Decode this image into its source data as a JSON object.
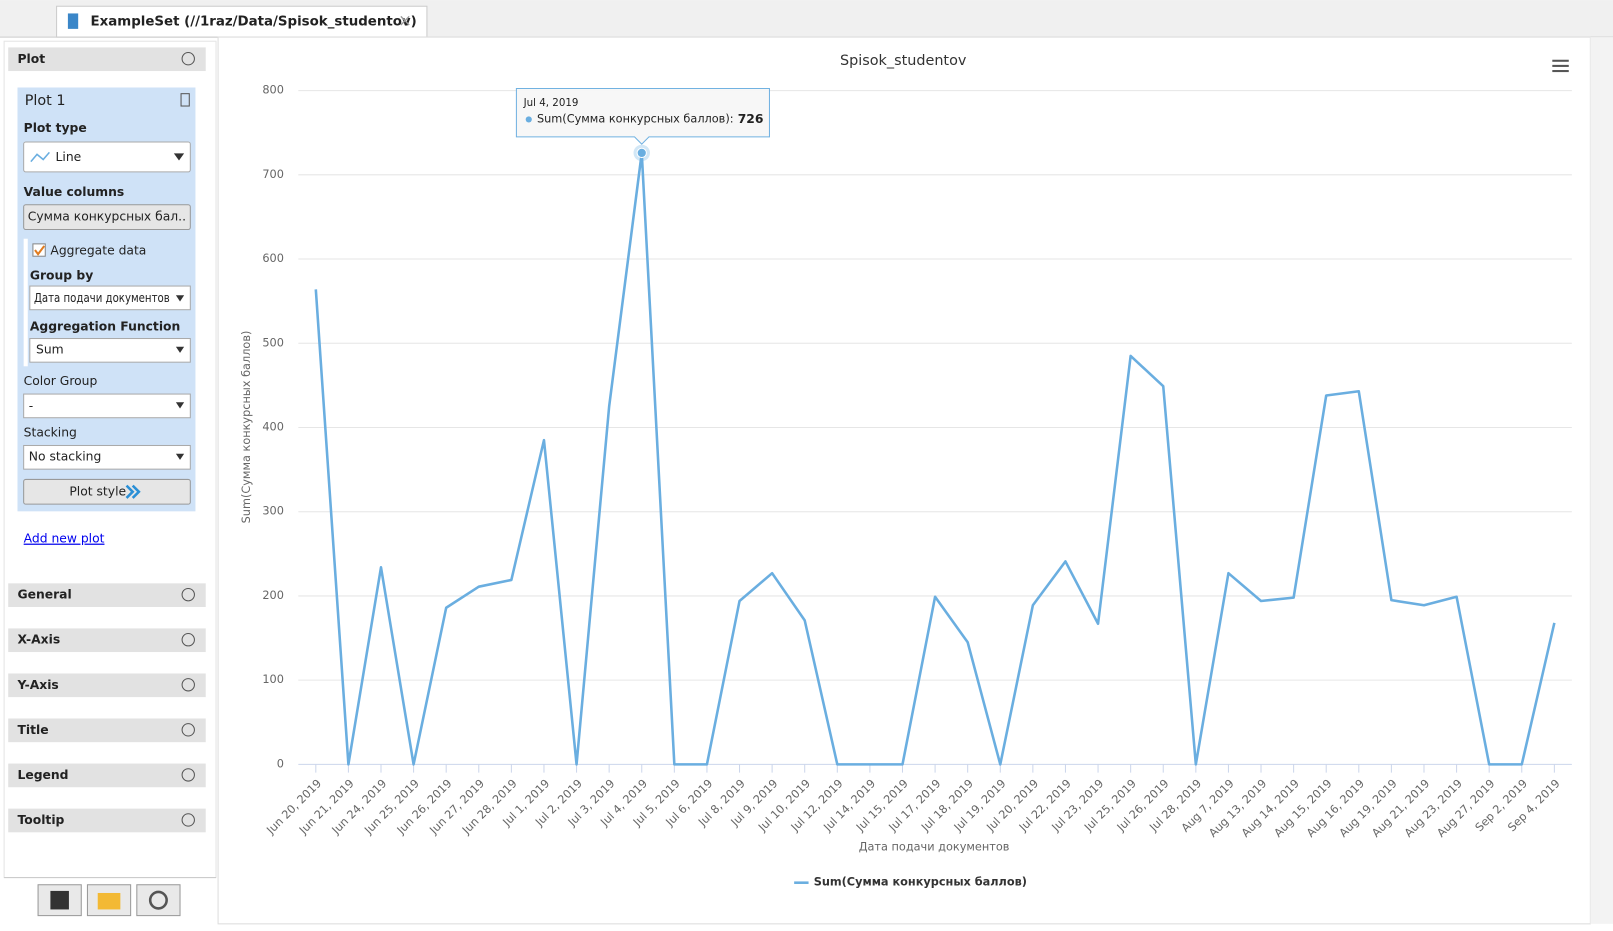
{
  "tab": {
    "title": "ExampleSet (//1raz/Data/Spisok_studentov)"
  },
  "sidebar": {
    "plot_header": "Plot",
    "plot_name": "Plot 1",
    "plot_type_label": "Plot type",
    "plot_type": "Line",
    "value_columns_label": "Value columns",
    "value_column": "Сумма конкурсных бал..",
    "aggregate_label": "Aggregate data",
    "group_by_label": "Group by",
    "group_by": "Дата подачи документов",
    "aggregation_label": "Aggregation Function",
    "aggregation": "Sum",
    "color_group_label": "Color Group",
    "color_group": "-",
    "stacking_label": "Stacking",
    "stacking": "No stacking",
    "plot_style": "Plot style",
    "add_plot": "Add new plot",
    "sections": [
      "General",
      "X-Axis",
      "Y-Axis",
      "Title",
      "Legend",
      "Tooltip"
    ]
  },
  "chart_data": {
    "type": "line",
    "title": "Spisok_studentov",
    "x_label": "Дата подачи документов",
    "y_label": "Sum(Сумма конкурсных баллов)",
    "categories": [
      "Jun 20, 2019",
      "Jun 21, 2019",
      "Jun 24, 2019",
      "Jun 25, 2019",
      "Jun 26, 2019",
      "Jun 27, 2019",
      "Jun 28, 2019",
      "Jul 1, 2019",
      "Jul 2, 2019",
      "Jul 3, 2019",
      "Jul 4, 2019",
      "Jul 5, 2019",
      "Jul 6, 2019",
      "Jul 8, 2019",
      "Jul 9, 2019",
      "Jul 10, 2019",
      "Jul 12, 2019",
      "Jul 14, 2019",
      "Jul 15, 2019",
      "Jul 17, 2019",
      "Jul 18, 2019",
      "Jul 19, 2019",
      "Jul 20, 2019",
      "Jul 22, 2019",
      "Jul 23, 2019",
      "Jul 25, 2019",
      "Jul 26, 2019",
      "Jul 28, 2019",
      "Aug 7, 2019",
      "Aug 13, 2019",
      "Aug 14, 2019",
      "Aug 15, 2019",
      "Aug 16, 2019",
      "Aug 19, 2019",
      "Aug 21, 2019",
      "Aug 23, 2019",
      "Aug 27, 2019",
      "Sep 2, 2019",
      "Sep 4, 2019"
    ],
    "series": [
      {
        "name": "Sum(Сумма конкурсных баллов)",
        "color": "#6aaee0",
        "values": [
          564,
          0,
          234,
          0,
          186,
          211,
          219,
          385,
          0,
          425,
          726,
          0,
          0,
          194,
          227,
          171,
          0,
          0,
          0,
          199,
          145,
          0,
          189,
          241,
          167,
          485,
          449,
          0,
          227,
          194,
          198,
          438,
          443,
          195,
          189,
          199,
          0,
          0,
          168
        ]
      }
    ],
    "ylim": [
      0,
      800
    ],
    "yticks": [
      0,
      100,
      200,
      300,
      400,
      500,
      600,
      700,
      800
    ],
    "grid": true
  },
  "tooltip": {
    "label": "Sum(Сумма конкурсных баллов):"
  }
}
